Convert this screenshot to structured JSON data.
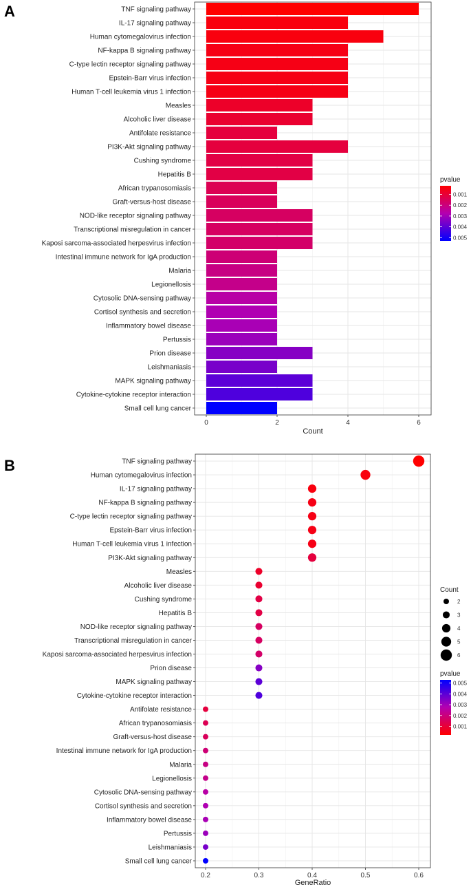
{
  "panel_labels": [
    "A",
    "B"
  ],
  "colors": {
    "low_p": "#ff0000",
    "high_p": "#0000ff"
  },
  "chart_data": [
    {
      "type": "bar",
      "orientation": "horizontal",
      "panel": "A",
      "xlabel": "Count",
      "xlim": [
        0,
        6.3
      ],
      "xticks": [
        0,
        2,
        4,
        6
      ],
      "color_legend": {
        "title": "pvalue",
        "ticks": [
          "0.001",
          "0.002",
          "0.003",
          "0.004",
          "0.005"
        ],
        "range": [
          0.0002,
          0.0053
        ]
      },
      "categories": [
        "TNF signaling pathway",
        "IL-17 signaling pathway",
        "Human cytomegalovirus infection",
        "NF-kappa B signaling pathway",
        "C-type lectin receptor signaling pathway",
        "Epstein-Barr virus infection",
        "Human T-cell leukemia virus 1 infection",
        "Measles",
        "Alcoholic liver disease",
        "Antifolate resistance",
        "PI3K-Akt signaling pathway",
        "Cushing syndrome",
        "Hepatitis B",
        "African trypanosomiasis",
        "Graft-versus-host disease",
        "NOD-like receptor signaling pathway",
        "Transcriptional misregulation in cancer",
        "Kaposi sarcoma-associated herpesvirus infection",
        "Intestinal immune network for IgA production",
        "Malaria",
        "Legionellosis",
        "Cytosolic DNA-sensing pathway",
        "Cortisol synthesis and secretion",
        "Inflammatory bowel disease",
        "Pertussis",
        "Prion disease",
        "Leishmaniasis",
        "MAPK signaling pathway",
        "Cytokine-cytokine receptor interaction",
        "Small cell lung cancer"
      ],
      "values": [
        6,
        4,
        5,
        4,
        4,
        4,
        4,
        3,
        3,
        2,
        4,
        3,
        3,
        2,
        2,
        3,
        3,
        3,
        2,
        2,
        2,
        2,
        2,
        2,
        2,
        3,
        2,
        3,
        3,
        2
      ],
      "pvalues": [
        0.0002,
        0.0004,
        0.0004,
        0.0005,
        0.0005,
        0.0005,
        0.0005,
        0.0008,
        0.0009,
        0.0011,
        0.0011,
        0.0012,
        0.0012,
        0.0014,
        0.0015,
        0.0016,
        0.0016,
        0.0017,
        0.0019,
        0.0021,
        0.0022,
        0.0026,
        0.0028,
        0.0029,
        0.0031,
        0.0034,
        0.0036,
        0.004,
        0.0042,
        0.0053
      ]
    },
    {
      "type": "scatter",
      "panel": "B",
      "xlabel": "GeneRatio",
      "xlim": [
        0.185,
        0.615
      ],
      "xticks": [
        0.2,
        0.3,
        0.4,
        0.5,
        0.6
      ],
      "size_legend": {
        "title": "Count",
        "values": [
          2,
          3,
          4,
          5,
          6
        ]
      },
      "color_legend": {
        "title": "pvalue",
        "ticks": [
          "0.005",
          "0.004",
          "0.003",
          "0.002",
          "0.001"
        ],
        "range": [
          0.0002,
          0.0053
        ]
      },
      "categories": [
        "TNF signaling pathway",
        "Human cytomegalovirus infection",
        "IL-17 signaling pathway",
        "NF-kappa B signaling pathway",
        "C-type lectin receptor signaling pathway",
        "Epstein-Barr virus infection",
        "Human T-cell leukemia virus 1 infection",
        "PI3K-Akt signaling pathway",
        "Measles",
        "Alcoholic liver disease",
        "Cushing syndrome",
        "Hepatitis B",
        "NOD-like receptor signaling pathway",
        "Transcriptional misregulation in cancer",
        "Kaposi sarcoma-associated herpesvirus infection",
        "Prion disease",
        "MAPK signaling pathway",
        "Cytokine-cytokine receptor interaction",
        "Antifolate resistance",
        "African trypanosomiasis",
        "Graft-versus-host disease",
        "Intestinal immune network for IgA production",
        "Malaria",
        "Legionellosis",
        "Cytosolic DNA-sensing pathway",
        "Cortisol synthesis and secretion",
        "Inflammatory bowel disease",
        "Pertussis",
        "Leishmaniasis",
        "Small cell lung cancer"
      ],
      "x": [
        0.6,
        0.5,
        0.4,
        0.4,
        0.4,
        0.4,
        0.4,
        0.4,
        0.3,
        0.3,
        0.3,
        0.3,
        0.3,
        0.3,
        0.3,
        0.3,
        0.3,
        0.3,
        0.2,
        0.2,
        0.2,
        0.2,
        0.2,
        0.2,
        0.2,
        0.2,
        0.2,
        0.2,
        0.2,
        0.2
      ],
      "counts": [
        6,
        5,
        4,
        4,
        4,
        4,
        4,
        4,
        3,
        3,
        3,
        3,
        3,
        3,
        3,
        3,
        3,
        3,
        2,
        2,
        2,
        2,
        2,
        2,
        2,
        2,
        2,
        2,
        2,
        2
      ],
      "pvalues": [
        0.0002,
        0.0004,
        0.0004,
        0.0005,
        0.0005,
        0.0005,
        0.0005,
        0.0011,
        0.0008,
        0.0009,
        0.0012,
        0.0012,
        0.0016,
        0.0016,
        0.0017,
        0.0034,
        0.004,
        0.0042,
        0.0011,
        0.0014,
        0.0015,
        0.0019,
        0.0021,
        0.0022,
        0.0026,
        0.0028,
        0.0029,
        0.0031,
        0.0036,
        0.0053
      ]
    }
  ]
}
